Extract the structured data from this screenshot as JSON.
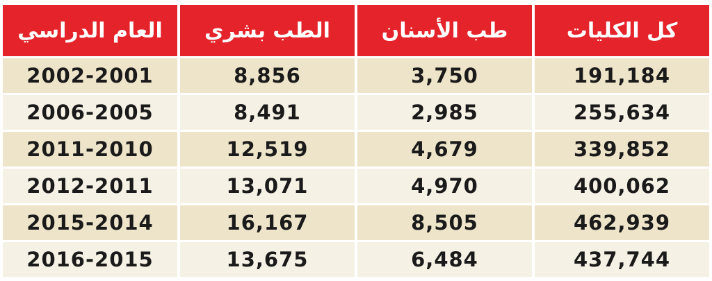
{
  "table": {
    "header": [
      "العام الدراسي",
      "الطب بشري",
      "طب الأسنان",
      "كل الكليات"
    ],
    "rows": [
      [
        "2002-2001",
        "8,856",
        "3,750",
        "191,184"
      ],
      [
        "2006-2005",
        "8,491",
        "2,985",
        "255,634"
      ],
      [
        "2011-2010",
        "12,519",
        "4,679",
        "339,852"
      ],
      [
        "2012-2011",
        "13,071",
        "4,970",
        "400,062"
      ],
      [
        "2015-2014",
        "16,167",
        "8,505",
        "462,939"
      ],
      [
        "2016-2015",
        "13,675",
        "6,484",
        "437,744"
      ]
    ]
  }
}
